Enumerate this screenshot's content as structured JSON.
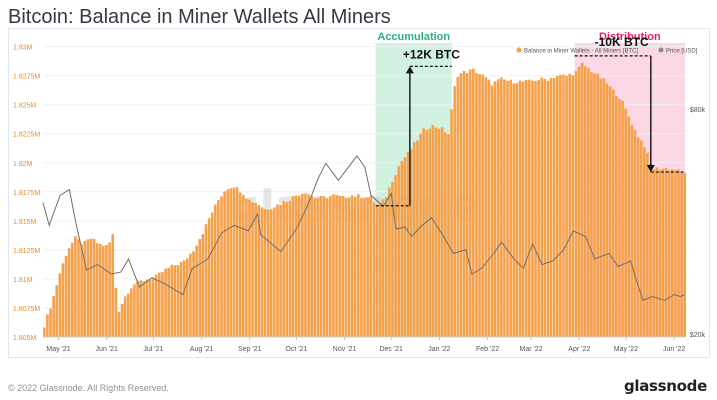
{
  "page": {
    "title": "Bitcoin: Balance in Miner Wallets All Miners",
    "copyright": "© 2022 Glassnode. All Rights Reserved.",
    "brand": "glassnode",
    "watermark": "glassnode"
  },
  "chart_data": {
    "type": "bar",
    "title": "Bitcoin: Balance in Miner Wallets All Miners",
    "legend_position": "top-right",
    "legend": [
      {
        "name": "Balance in Miner Wallets - All Miners [BTC]",
        "color": "#f7a04a"
      },
      {
        "name": "Price [USD]",
        "color": "#8c8c8c"
      }
    ],
    "x_tick_labels": [
      "May '21",
      "Jun '21",
      "Jul '21",
      "Aug '21",
      "Sep '21",
      "Oct '21",
      "Nov '21",
      "Dec '21",
      "Jan '22",
      "Feb '22",
      "Mar '22",
      "Apr '22",
      "May '22",
      "Jun '22"
    ],
    "y_left": {
      "ticks": [
        1.805,
        1.8075,
        1.81,
        1.8125,
        1.815,
        1.8175,
        1.82,
        1.8225,
        1.825,
        1.8275,
        1.83
      ],
      "tick_labels": [
        "1.805M",
        "1.8075M",
        "1.81M",
        "1.8125M",
        "1.815M",
        "1.8175M",
        "1.82M",
        "1.8225M",
        "1.825M",
        "1.8275M",
        "1.83M"
      ],
      "unit": "M BTC",
      "range": [
        1.805,
        1.831
      ]
    },
    "y_right": {
      "tick_labels": [
        "$80k",
        "$20k"
      ]
    },
    "x_range": [
      "2021-04-21",
      "2022-06-08"
    ],
    "series": [
      {
        "name": "Balance in Miner Wallets - All Miners [BTC]",
        "type": "bar",
        "color": "#f7a04a",
        "unit": "M BTC",
        "points": [
          [
            "2021-04-21",
            1.806
          ],
          [
            "2021-04-26",
            1.808
          ],
          [
            "2021-05-01",
            1.8105
          ],
          [
            "2021-05-06",
            1.8125
          ],
          [
            "2021-05-11",
            1.8135
          ],
          [
            "2021-05-16",
            1.813
          ],
          [
            "2021-05-21",
            1.8135
          ],
          [
            "2021-05-26",
            1.813
          ],
          [
            "2021-06-01",
            1.8128
          ],
          [
            "2021-06-04",
            1.8138
          ],
          [
            "2021-06-07",
            1.807
          ],
          [
            "2021-06-12",
            1.8085
          ],
          [
            "2021-06-17",
            1.8095
          ],
          [
            "2021-06-22",
            1.8098
          ],
          [
            "2021-06-27",
            1.81
          ],
          [
            "2021-07-02",
            1.8102
          ],
          [
            "2021-07-08",
            1.8108
          ],
          [
            "2021-07-14",
            1.8112
          ],
          [
            "2021-07-20",
            1.8115
          ],
          [
            "2021-07-26",
            1.8125
          ],
          [
            "2021-08-01",
            1.814
          ],
          [
            "2021-08-06",
            1.8155
          ],
          [
            "2021-08-11",
            1.8168
          ],
          [
            "2021-08-16",
            1.8178
          ],
          [
            "2021-08-21",
            1.818
          ],
          [
            "2021-08-26",
            1.8175
          ],
          [
            "2021-08-31",
            1.8168
          ],
          [
            "2021-09-05",
            1.8165
          ],
          [
            "2021-09-10",
            1.816
          ],
          [
            "2021-09-15",
            1.8162
          ],
          [
            "2021-09-20",
            1.8165
          ],
          [
            "2021-09-25",
            1.8168
          ],
          [
            "2021-09-30",
            1.8172
          ],
          [
            "2021-10-06",
            1.8175
          ],
          [
            "2021-10-12",
            1.817
          ],
          [
            "2021-10-18",
            1.817
          ],
          [
            "2021-10-24",
            1.8172
          ],
          [
            "2021-10-30",
            1.817
          ],
          [
            "2021-11-05",
            1.8172
          ],
          [
            "2021-11-11",
            1.8171
          ],
          [
            "2021-11-17",
            1.817
          ],
          [
            "2021-11-21",
            1.8163
          ],
          [
            "2021-11-26",
            1.8168
          ],
          [
            "2021-12-01",
            1.8185
          ],
          [
            "2021-12-06",
            1.82
          ],
          [
            "2021-12-11",
            1.8208
          ],
          [
            "2021-12-16",
            1.8218
          ],
          [
            "2021-12-21",
            1.8228
          ],
          [
            "2021-12-26",
            1.8232
          ],
          [
            "2022-01-01",
            1.823
          ],
          [
            "2022-01-06",
            1.8225
          ],
          [
            "2022-01-11",
            1.8275
          ],
          [
            "2022-01-16",
            1.8278
          ],
          [
            "2022-01-22",
            1.828
          ],
          [
            "2022-01-28",
            1.8275
          ],
          [
            "2022-02-03",
            1.8268
          ],
          [
            "2022-02-09",
            1.8272
          ],
          [
            "2022-02-15",
            1.827
          ],
          [
            "2022-02-21",
            1.827
          ],
          [
            "2022-02-27",
            1.827
          ],
          [
            "2022-03-05",
            1.8272
          ],
          [
            "2022-03-11",
            1.8272
          ],
          [
            "2022-03-17",
            1.8275
          ],
          [
            "2022-03-23",
            1.8275
          ],
          [
            "2022-03-29",
            1.8278
          ],
          [
            "2022-04-02",
            1.8285
          ],
          [
            "2022-04-07",
            1.828
          ],
          [
            "2022-04-12",
            1.8275
          ],
          [
            "2022-04-17",
            1.827
          ],
          [
            "2022-04-22",
            1.8262
          ],
          [
            "2022-04-27",
            1.8255
          ],
          [
            "2022-05-02",
            1.824
          ],
          [
            "2022-05-07",
            1.8225
          ],
          [
            "2022-05-12",
            1.8215
          ],
          [
            "2022-05-17",
            1.8195
          ],
          [
            "2022-05-22",
            1.8195
          ],
          [
            "2022-05-27",
            1.8195
          ],
          [
            "2022-06-01",
            1.8194
          ],
          [
            "2022-06-05",
            1.8192
          ],
          [
            "2022-06-08",
            1.8192
          ]
        ]
      },
      {
        "name": "Price [USD]",
        "type": "line",
        "color": "#7a7a7a",
        "unit": "USD",
        "points": [
          [
            "2021-04-21",
            55000
          ],
          [
            "2021-04-25",
            49000
          ],
          [
            "2021-05-02",
            57000
          ],
          [
            "2021-05-08",
            58500
          ],
          [
            "2021-05-12",
            50000
          ],
          [
            "2021-05-19",
            37000
          ],
          [
            "2021-05-26",
            38500
          ],
          [
            "2021-06-04",
            36000
          ],
          [
            "2021-06-10",
            36500
          ],
          [
            "2021-06-15",
            40000
          ],
          [
            "2021-06-22",
            32500
          ],
          [
            "2021-06-30",
            35000
          ],
          [
            "2021-07-08",
            33500
          ],
          [
            "2021-07-20",
            30500
          ],
          [
            "2021-07-26",
            37500
          ],
          [
            "2021-08-05",
            40000
          ],
          [
            "2021-08-14",
            47000
          ],
          [
            "2021-08-22",
            49000
          ],
          [
            "2021-08-31",
            47500
          ],
          [
            "2021-09-06",
            52000
          ],
          [
            "2021-09-08",
            46500
          ],
          [
            "2021-09-21",
            42000
          ],
          [
            "2021-10-01",
            48000
          ],
          [
            "2021-10-08",
            54000
          ],
          [
            "2021-10-15",
            61500
          ],
          [
            "2021-10-20",
            65500
          ],
          [
            "2021-10-28",
            61000
          ],
          [
            "2021-11-09",
            67500
          ],
          [
            "2021-11-14",
            64500
          ],
          [
            "2021-11-18",
            57000
          ],
          [
            "2021-11-26",
            54000
          ],
          [
            "2021-12-01",
            57500
          ],
          [
            "2021-12-04",
            48000
          ],
          [
            "2021-12-10",
            48500
          ],
          [
            "2021-12-14",
            46000
          ],
          [
            "2021-12-21",
            49000
          ],
          [
            "2021-12-27",
            51000
          ],
          [
            "2022-01-03",
            46500
          ],
          [
            "2022-01-10",
            41500
          ],
          [
            "2022-01-18",
            42500
          ],
          [
            "2022-01-22",
            36000
          ],
          [
            "2022-01-28",
            37500
          ],
          [
            "2022-02-05",
            41500
          ],
          [
            "2022-02-10",
            44500
          ],
          [
            "2022-02-18",
            40000
          ],
          [
            "2022-02-24",
            37500
          ],
          [
            "2022-03-02",
            44000
          ],
          [
            "2022-03-08",
            38500
          ],
          [
            "2022-03-15",
            39500
          ],
          [
            "2022-03-22",
            42500
          ],
          [
            "2022-03-28",
            47500
          ],
          [
            "2022-04-05",
            46000
          ],
          [
            "2022-04-11",
            40000
          ],
          [
            "2022-04-20",
            41500
          ],
          [
            "2022-04-26",
            38000
          ],
          [
            "2022-05-04",
            39500
          ],
          [
            "2022-05-08",
            34000
          ],
          [
            "2022-05-12",
            29000
          ],
          [
            "2022-05-18",
            30000
          ],
          [
            "2022-05-26",
            29000
          ],
          [
            "2022-06-01",
            30500
          ],
          [
            "2022-06-05",
            30000
          ],
          [
            "2022-06-08",
            30500
          ]
        ]
      }
    ],
    "annotations": [
      {
        "label": "Accumulation",
        "type": "region",
        "start": "2021-11-21",
        "end": "2022-01-09",
        "color": "#2ab27b",
        "fill": "#c9efdc"
      },
      {
        "label": "Distribution",
        "type": "region",
        "start": "2022-03-29",
        "end": "2022-06-08",
        "color": "#e91e63",
        "fill": "#fbd0e0"
      },
      {
        "label": "+12K BTC",
        "type": "arrow",
        "date": "2021-12-13",
        "from": 1.8163,
        "to": 1.8283
      },
      {
        "label": "-10K BTC",
        "type": "arrow",
        "date": "2022-05-17",
        "from": 1.8292,
        "to": 1.8192
      }
    ]
  }
}
